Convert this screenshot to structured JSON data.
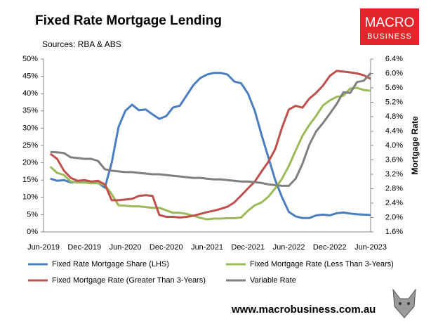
{
  "chart_data": {
    "type": "line",
    "title": "Fixed Rate Mortgage Lending",
    "subtitle": "Sources: RBA & ABS",
    "y2label": "Mortgage Rate",
    "categories": [
      "Jun-2019",
      null,
      null,
      null,
      null,
      null,
      "Dec-2019",
      null,
      null,
      null,
      null,
      null,
      "Jun-2020",
      null,
      null,
      null,
      null,
      null,
      "Dec-2020",
      null,
      null,
      null,
      null,
      null,
      "Jun-2021",
      null,
      null,
      null,
      null,
      null,
      "Dec-2021",
      null,
      null,
      null,
      null,
      null,
      "Jun-2022",
      null,
      null,
      null,
      null,
      null,
      "Dec-2022",
      null,
      null,
      null,
      null,
      null,
      "Jun-2023"
    ],
    "ylim": [
      0,
      50
    ],
    "yticks": [
      {
        "value": 0,
        "label": "0%"
      },
      {
        "value": 5,
        "label": "5%"
      },
      {
        "value": 10,
        "label": "10%"
      },
      {
        "value": 15,
        "label": "15%"
      },
      {
        "value": 20,
        "label": "20%"
      },
      {
        "value": 25,
        "label": "25%"
      },
      {
        "value": 30,
        "label": "30%"
      },
      {
        "value": 35,
        "label": "35%"
      },
      {
        "value": 40,
        "label": "40%"
      },
      {
        "value": 45,
        "label": "45%"
      },
      {
        "value": 50,
        "label": "50%"
      }
    ],
    "y2lim": [
      1.6,
      6.4
    ],
    "y2ticks": [
      {
        "value": 1.6,
        "label": "1.6%"
      },
      {
        "value": 2.0,
        "label": "2.0%"
      },
      {
        "value": 2.4,
        "label": "2.4%"
      },
      {
        "value": 2.8,
        "label": "2.8%"
      },
      {
        "value": 3.2,
        "label": "3.2%"
      },
      {
        "value": 3.6,
        "label": "3.6%"
      },
      {
        "value": 4.0,
        "label": "4.0%"
      },
      {
        "value": 4.4,
        "label": "4.4%"
      },
      {
        "value": 4.8,
        "label": "4.8%"
      },
      {
        "value": 5.2,
        "label": "5.2%"
      },
      {
        "value": 5.6,
        "label": "5.6%"
      },
      {
        "value": 6.0,
        "label": "6.0%"
      },
      {
        "value": 6.4,
        "label": "6.4%"
      }
    ],
    "series": [
      {
        "name": "Fixed Rate Mortgage Share (LHS)",
        "color": "#4a7ebf",
        "axis": "y",
        "values": [
          null,
          15.4,
          14.8,
          15.0,
          14.3,
          14.5,
          14.4,
          14.4,
          14.2,
          12.8,
          20,
          30.3,
          35,
          36.8,
          35.2,
          35.4,
          34,
          32.7,
          33.5,
          36,
          36.5,
          39.5,
          42.5,
          44.5,
          45.5,
          46,
          46,
          45.5,
          43.5,
          43,
          40,
          35,
          28,
          21.5,
          15,
          10,
          5.8,
          4.5,
          4,
          4,
          4.8,
          5,
          4.8,
          5.4,
          5.6,
          5.3,
          5.1,
          5.0,
          4.9
        ]
      },
      {
        "name": "Fixed Mortgage Rate (Less Than 3-Years)",
        "color": "#9bbb59",
        "axis": "y2",
        "values": [
          null,
          3.41,
          3.24,
          3.18,
          3.0,
          2.97,
          2.97,
          2.95,
          2.95,
          2.9,
          2.65,
          2.34,
          2.33,
          2.31,
          2.31,
          2.29,
          2.27,
          2.27,
          2.2,
          2.13,
          2.13,
          2.1,
          2.05,
          1.99,
          1.95,
          1.97,
          1.97,
          1.98,
          1.98,
          2.0,
          2.19,
          2.34,
          2.42,
          2.58,
          2.81,
          3.08,
          3.43,
          3.86,
          4.27,
          4.57,
          4.82,
          5.11,
          5.25,
          5.35,
          5.38,
          5.58,
          5.6,
          5.54,
          5.52
        ]
      },
      {
        "name": "Fixed Mortgage Rate (Greater Than 3-Years)",
        "color": "#c0504d",
        "axis": "y2",
        "values": [
          null,
          3.77,
          3.63,
          3.3,
          3.1,
          3.02,
          3.04,
          3.0,
          3.02,
          2.92,
          2.48,
          2.48,
          2.5,
          2.52,
          2.6,
          2.62,
          2.6,
          2.07,
          2.02,
          2.02,
          2.0,
          2.02,
          2.05,
          2.1,
          2.15,
          2.19,
          2.24,
          2.3,
          2.42,
          2.61,
          2.81,
          3.0,
          3.28,
          3.55,
          3.9,
          4.5,
          5.0,
          5.1,
          5.05,
          5.3,
          5.46,
          5.66,
          5.93,
          6.07,
          6.05,
          6.03,
          6.0,
          5.95,
          5.85
        ]
      },
      {
        "name": "Variable Rate",
        "color": "#7f7f7f",
        "axis": "y2",
        "values": [
          null,
          3.82,
          3.81,
          3.79,
          3.67,
          3.65,
          3.63,
          3.63,
          3.57,
          3.34,
          3.3,
          3.28,
          3.26,
          3.26,
          3.24,
          3.22,
          3.2,
          3.2,
          3.18,
          3.16,
          3.14,
          3.12,
          3.1,
          3.1,
          3.08,
          3.06,
          3.06,
          3.04,
          3.02,
          3.0,
          3.0,
          2.98,
          2.96,
          2.92,
          2.9,
          2.88,
          2.88,
          3.08,
          3.49,
          4.02,
          4.39,
          4.62,
          4.88,
          5.15,
          5.48,
          5.46,
          5.76,
          5.8,
          6.01
        ]
      }
    ]
  },
  "logo": {
    "line1": "MACRO",
    "line2": "BUSINESS"
  },
  "footer": "www.macrobusiness.com.au"
}
